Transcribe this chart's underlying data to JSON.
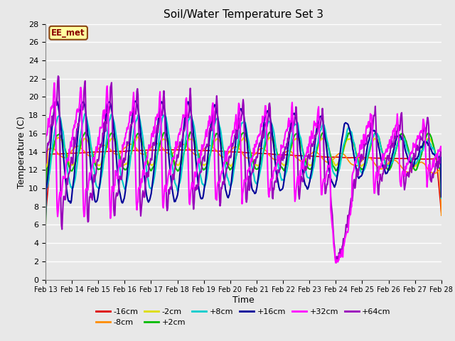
{
  "title": "Soil/Water Temperature Set 3",
  "xlabel": "Time",
  "ylabel": "Temperature (C)",
  "ylim": [
    0,
    28
  ],
  "yticks": [
    0,
    2,
    4,
    6,
    8,
    10,
    12,
    14,
    16,
    18,
    20,
    22,
    24,
    26,
    28
  ],
  "xtick_labels": [
    "Feb 13",
    "Feb 14",
    "Feb 15",
    "Feb 16",
    "Feb 17",
    "Feb 18",
    "Feb 19",
    "Feb 20",
    "Feb 21",
    "Feb 22",
    "Feb 23",
    "Feb 24",
    "Feb 25",
    "Feb 26",
    "Feb 27",
    "Feb 28"
  ],
  "annotation_text": "EE_met",
  "annotation_color": "#8B0000",
  "annotation_bg": "#FFFFA0",
  "bg_color": "#E8E8E8",
  "legend_entries": [
    "-16cm",
    "-8cm",
    "-2cm",
    "+2cm",
    "+8cm",
    "+16cm",
    "+32cm",
    "+64cm"
  ],
  "line_colors": {
    "-16cm": "#DD0000",
    "-8cm": "#FF8C00",
    "-2cm": "#DDDD00",
    "+2cm": "#00BB00",
    "+8cm": "#00CCCC",
    "+16cm": "#000099",
    "+32cm": "#FF00FF",
    "+64cm": "#9900BB"
  }
}
